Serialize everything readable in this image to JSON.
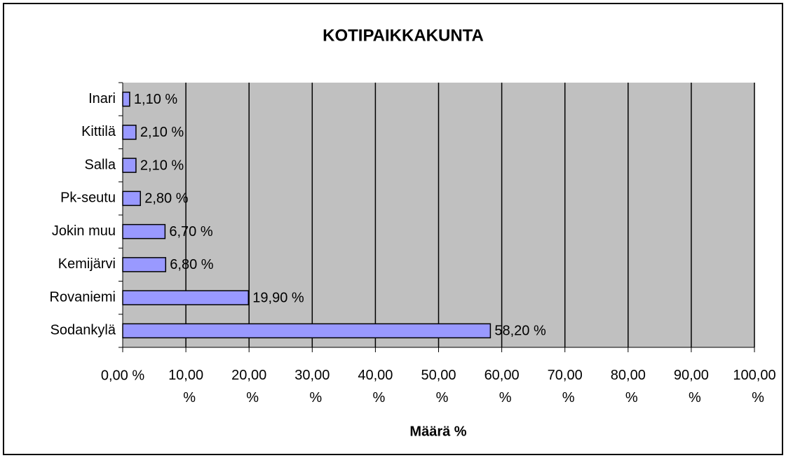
{
  "chart_data": {
    "type": "bar",
    "orientation": "horizontal",
    "title": "KOTIPAIKKAKUNTA",
    "x_label": "Määrä %",
    "categories": [
      "Inari",
      "Kittilä",
      "Salla",
      "Pk-seutu",
      "Jokin muu",
      "Kemijärvi",
      "Rovaniemi",
      "Sodankylä"
    ],
    "values": [
      1.1,
      2.1,
      2.1,
      2.8,
      6.7,
      6.8,
      19.9,
      58.2
    ],
    "value_labels": [
      "1,10 %",
      "2,10 %",
      "2,10 %",
      "2,80 %",
      "6,70 %",
      "6,80 %",
      "19,90 %",
      "58,20 %"
    ],
    "color": "#9999ff",
    "xlim": [
      0,
      100
    ],
    "xticks": [
      {
        "value": 0,
        "label": "0,00 %"
      },
      {
        "value": 10,
        "label": "10,00 %"
      },
      {
        "value": 20,
        "label": "20,00 %"
      },
      {
        "value": 30,
        "label": "30,00 %"
      },
      {
        "value": 40,
        "label": "40,00 %"
      },
      {
        "value": 50,
        "label": "50,00 %"
      },
      {
        "value": 60,
        "label": "60,00 %"
      },
      {
        "value": 70,
        "label": "70,00 %"
      },
      {
        "value": 80,
        "label": "80,00 %"
      },
      {
        "value": 90,
        "label": "90,00 %"
      },
      {
        "value": 100,
        "label": "100,00 %"
      }
    ],
    "grid": true
  }
}
